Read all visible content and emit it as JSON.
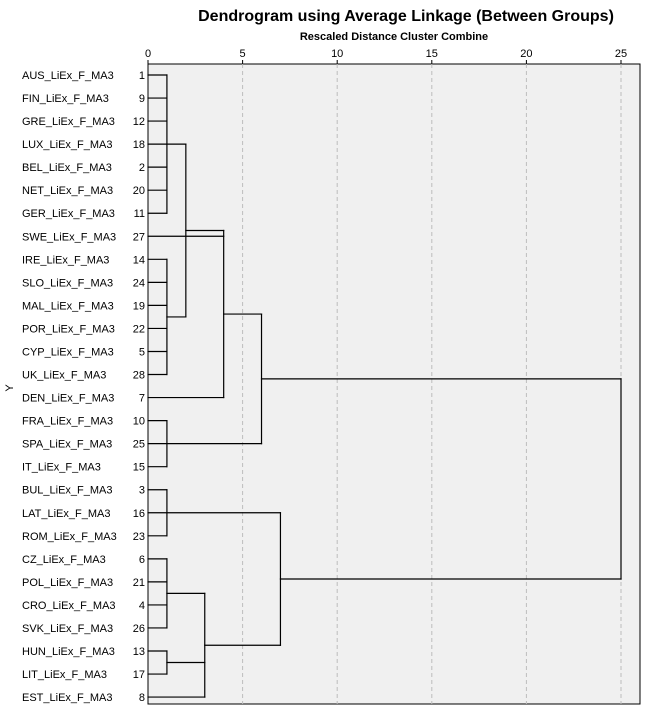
{
  "chart_data": {
    "type": "dendrogram",
    "title": "Dendrogram using Average Linkage (Between Groups)",
    "xlabel": "Rescaled Distance Cluster Combine",
    "ylabel": "Y",
    "xlim": [
      0,
      25
    ],
    "xticks": [
      0,
      5,
      10,
      15,
      20,
      25
    ],
    "grid": "vertical dashed",
    "leaves": [
      {
        "label": "AUS_LiEx_F_MA3",
        "case": "1"
      },
      {
        "label": "FIN_LiEx_F_MA3",
        "case": "9"
      },
      {
        "label": "GRE_LiEx_F_MA3",
        "case": "12"
      },
      {
        "label": "LUX_LiEx_F_MA3",
        "case": "18"
      },
      {
        "label": "BEL_LiEx_F_MA3",
        "case": "2"
      },
      {
        "label": "NET_LiEx_F_MA3",
        "case": "20"
      },
      {
        "label": "GER_LiEx_F_MA3",
        "case": "11"
      },
      {
        "label": "SWE_LiEx_F_MA3",
        "case": "27"
      },
      {
        "label": "IRE_LiEx_F_MA3",
        "case": "14"
      },
      {
        "label": "SLO_LiEx_F_MA3",
        "case": "24"
      },
      {
        "label": "MAL_LiEx_F_MA3",
        "case": "19"
      },
      {
        "label": "POR_LiEx_F_MA3",
        "case": "22"
      },
      {
        "label": "CYP_LiEx_F_MA3",
        "case": "5"
      },
      {
        "label": "UK_LiEx_F_MA3",
        "case": "28"
      },
      {
        "label": "DEN_LiEx_F_MA3",
        "case": "7"
      },
      {
        "label": "FRA_LiEx_F_MA3",
        "case": "10"
      },
      {
        "label": "SPA_LiEx_F_MA3",
        "case": "25"
      },
      {
        "label": "IT_LiEx_F_MA3",
        "case": "15"
      },
      {
        "label": "BUL_LiEx_F_MA3",
        "case": "3"
      },
      {
        "label": "LAT_LiEx_F_MA3",
        "case": "16"
      },
      {
        "label": "ROM_LiEx_F_MA3",
        "case": "23"
      },
      {
        "label": "CZ_LiEx_F_MA3",
        "case": "6"
      },
      {
        "label": "POL_LiEx_F_MA3",
        "case": "21"
      },
      {
        "label": "CRO_LiEx_F_MA3",
        "case": "4"
      },
      {
        "label": "SVK_LiEx_F_MA3",
        "case": "26"
      },
      {
        "label": "HUN_LiEx_F_MA3",
        "case": "13"
      },
      {
        "label": "LIT_LiEx_F_MA3",
        "case": "17"
      },
      {
        "label": "EST_LiEx_F_MA3",
        "case": "8"
      }
    ],
    "merges": [
      {
        "children": [
          {
            "leaf": 0
          },
          {
            "leaf": 1
          },
          {
            "leaf": 2
          },
          {
            "leaf": 3
          },
          {
            "leaf": 4
          },
          {
            "leaf": 5
          },
          {
            "leaf": 6
          }
        ],
        "distance": 1.0
      },
      {
        "children": [
          {
            "leaf": 8
          },
          {
            "leaf": 9
          },
          {
            "leaf": 10
          },
          {
            "leaf": 11
          },
          {
            "leaf": 12
          },
          {
            "leaf": 13
          }
        ],
        "distance": 1.0
      },
      {
        "children": [
          {
            "node": 0
          },
          {
            "node": 1
          }
        ],
        "distance": 2.0
      },
      {
        "children": [
          {
            "leaf": 7
          },
          {
            "node": 2
          },
          {
            "leaf": 14
          }
        ],
        "distance": 4.0
      },
      {
        "children": [
          {
            "leaf": 15
          },
          {
            "leaf": 16
          },
          {
            "leaf": 17
          }
        ],
        "distance": 1.0
      },
      {
        "children": [
          {
            "node": 3
          },
          {
            "node": 4
          }
        ],
        "distance": 6.0
      },
      {
        "children": [
          {
            "leaf": 18
          },
          {
            "leaf": 19
          },
          {
            "leaf": 20
          }
        ],
        "distance": 1.0
      },
      {
        "children": [
          {
            "leaf": 21
          },
          {
            "leaf": 22
          },
          {
            "leaf": 23
          },
          {
            "leaf": 24
          }
        ],
        "distance": 1.0
      },
      {
        "children": [
          {
            "leaf": 25
          },
          {
            "leaf": 26
          }
        ],
        "distance": 1.0
      },
      {
        "children": [
          {
            "node": 7
          },
          {
            "node": 8
          },
          {
            "leaf": 27
          }
        ],
        "distance": 3.0
      },
      {
        "children": [
          {
            "node": 6
          },
          {
            "node": 9
          }
        ],
        "distance": 7.0
      },
      {
        "children": [
          {
            "node": 5
          },
          {
            "node": 10
          }
        ],
        "distance": 25.0
      }
    ]
  }
}
